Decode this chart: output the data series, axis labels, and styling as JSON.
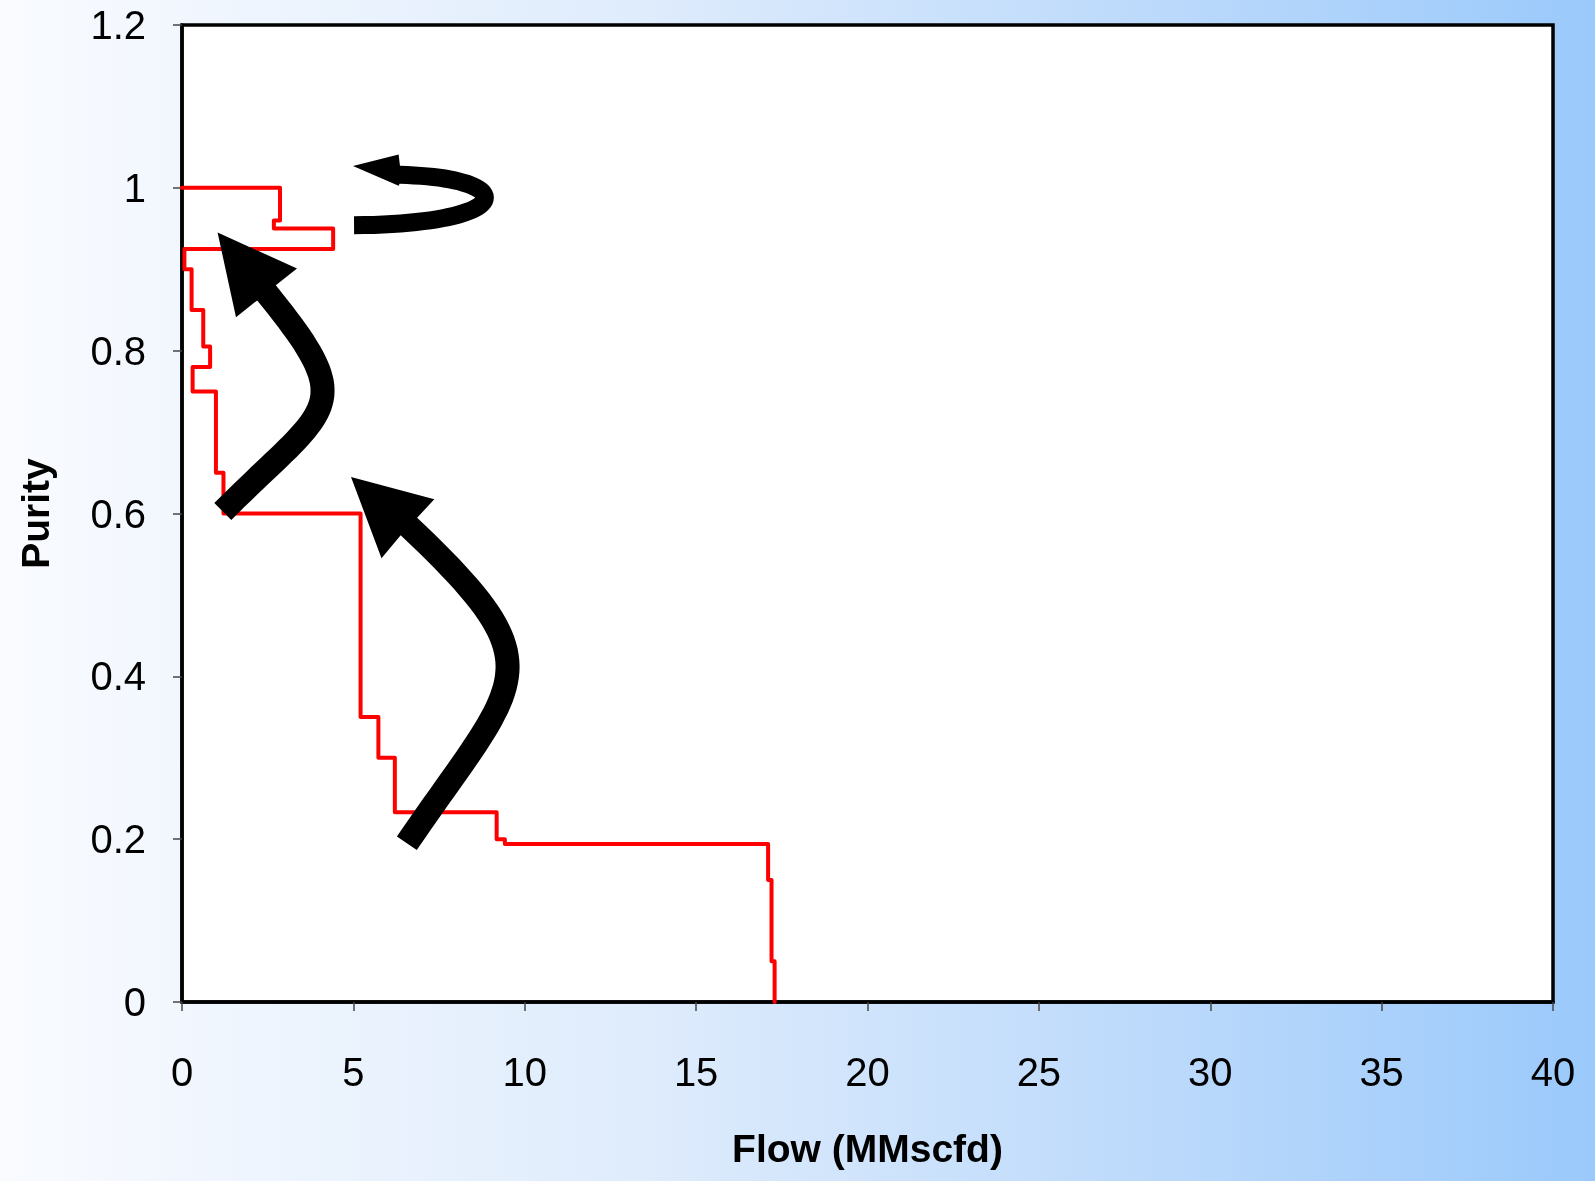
{
  "chart_data": {
    "type": "line",
    "xlabel": "Flow (MMscfd)",
    "ylabel": "Purity",
    "x": [
      0,
      2.86,
      2.86,
      2.68,
      2.68,
      4.41,
      4.41,
      0.07,
      0.07,
      0.28,
      0.28,
      0.62,
      0.62,
      0.82,
      0.82,
      0.31,
      0.31,
      0.99,
      0.99,
      1.21,
      1.21,
      5.21,
      5.21,
      5.73,
      5.73,
      6.21,
      6.21,
      9.18,
      9.18,
      9.42,
      9.42,
      17.1,
      17.1,
      17.2,
      17.2,
      17.29,
      17.29
    ],
    "values": [
      1,
      1,
      0.96,
      0.96,
      0.95,
      0.95,
      0.925,
      0.925,
      0.9,
      0.9,
      0.85,
      0.85,
      0.805,
      0.805,
      0.78,
      0.78,
      0.75,
      0.75,
      0.65,
      0.65,
      0.6,
      0.6,
      0.35,
      0.35,
      0.3,
      0.3,
      0.233,
      0.233,
      0.2,
      0.2,
      0.194,
      0.194,
      0.15,
      0.15,
      0.05,
      0.05,
      0
    ],
    "color": "#ff0000",
    "xlim": [
      0,
      40
    ],
    "ylim": [
      0,
      1.2
    ],
    "xticks": [
      0,
      5,
      10,
      15,
      20,
      25,
      30,
      35,
      40
    ],
    "yticks": [
      0,
      0.2,
      0.4,
      0.6,
      0.8,
      1,
      1.2
    ],
    "grid": false,
    "marker": "none",
    "line_style": "solid"
  }
}
